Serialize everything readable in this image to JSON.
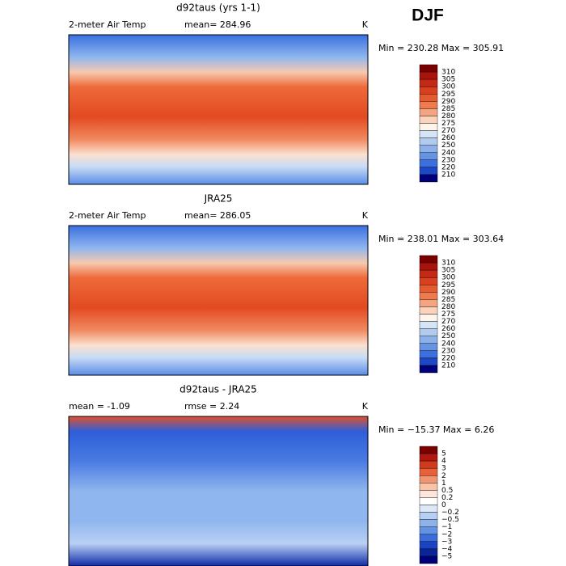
{
  "season": "DJF",
  "panels": [
    {
      "title": "d92taus (yrs 1-1)",
      "left": "2-meter Air Temp",
      "stats": [
        "mean= 284.96"
      ],
      "units": "K",
      "range": "Min = 230.28 Max = 305.91",
      "colorbar": [
        "310",
        "305",
        "300",
        "295",
        "290",
        "285",
        "280",
        "275",
        "270",
        "260",
        "250",
        "240",
        "230",
        "220",
        "210"
      ]
    },
    {
      "title": "JRA25",
      "left": "2-meter Air Temp",
      "stats": [
        "mean= 286.05"
      ],
      "units": "K",
      "range": "Min = 238.01 Max = 303.64",
      "colorbar": [
        "310",
        "305",
        "300",
        "295",
        "290",
        "285",
        "280",
        "275",
        "270",
        "260",
        "250",
        "240",
        "230",
        "220",
        "210"
      ]
    },
    {
      "title": "d92taus - JRA25",
      "left": "mean =  -1.09",
      "stats": [
        "rmse =   2.24"
      ],
      "units": "K",
      "range": "Min = −15.37 Max =   6.26",
      "colorbar": [
        "5",
        "4",
        "3",
        "2",
        "1",
        "0.5",
        "0.2",
        "0",
        "−0.2",
        "−0.5",
        "−1",
        "−2",
        "−3",
        "−4",
        "−5"
      ]
    }
  ]
}
